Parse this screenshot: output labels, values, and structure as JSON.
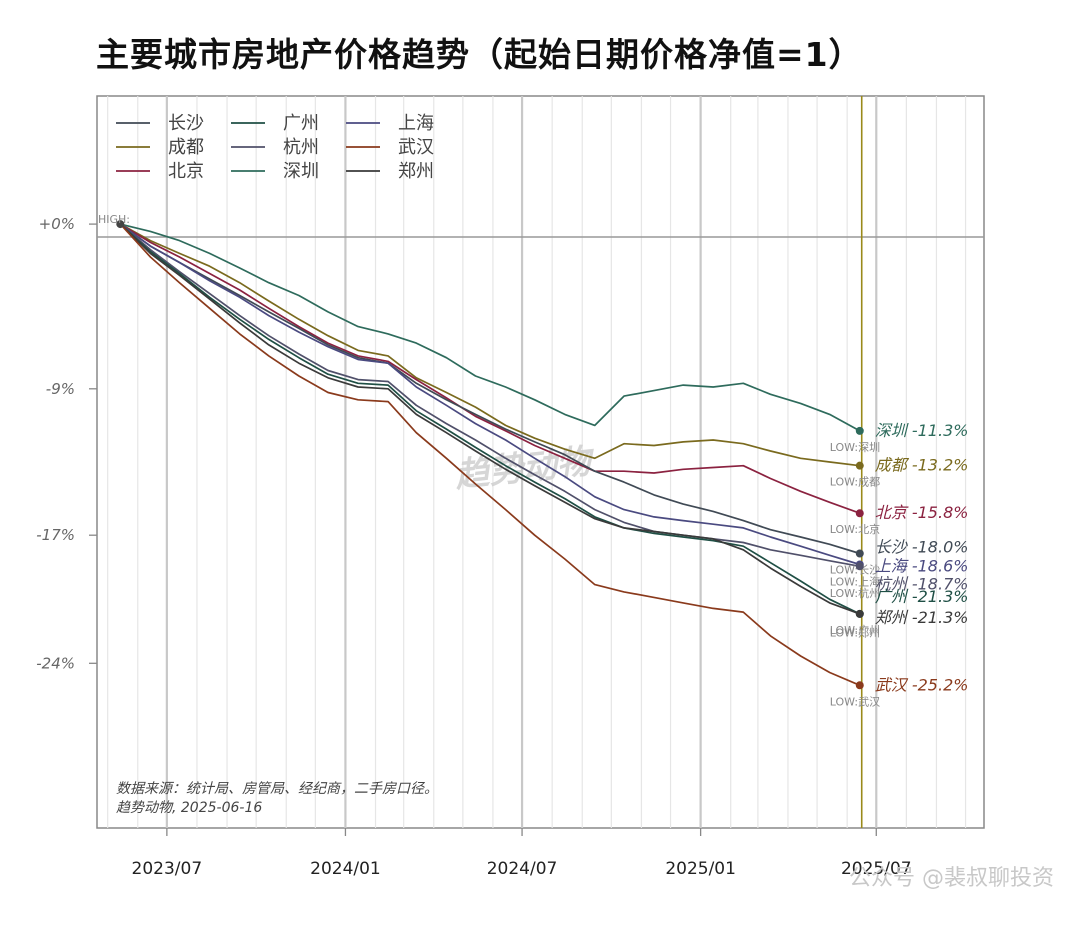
{
  "title": "主要城市房地产价格趋势（起始日期价格净值=1）",
  "high_label": "HIGH:",
  "low_prefix": "LOW:",
  "source_line1": "数据来源：统计局、房管局、经纪商，二手房口径。",
  "source_line2": "趋势动物, 2025-06-16",
  "watermark": "趋势动物",
  "footer_watermark": "公众号 @裴叔聊投资",
  "chart_data": {
    "type": "line",
    "title": "主要城市房地产价格趋势（起始日期价格净值=1）",
    "xlabel": "",
    "ylabel": "",
    "x_ticks": [
      "2023/07",
      "2024/01",
      "2024/07",
      "2025/01",
      "2025/07"
    ],
    "x_range": [
      "2023-04",
      "2025-10"
    ],
    "y_ticks": [
      "+0%",
      "-9%",
      "-17%",
      "-24%"
    ],
    "y_tick_values": [
      0,
      -9,
      -17,
      -24
    ],
    "ylim": [
      -33,
      7
    ],
    "grid": true,
    "legend_position": "top-left",
    "legend_order": [
      "长沙",
      "广州",
      "上海",
      "成都",
      "杭州",
      "武汉",
      "北京",
      "深圳",
      "郑州"
    ],
    "vline_date": "2025-06-16",
    "x": [
      "2023-05",
      "2023-06",
      "2023-07",
      "2023-08",
      "2023-09",
      "2023-10",
      "2023-11",
      "2023-12",
      "2024-01",
      "2024-02",
      "2024-03",
      "2024-04",
      "2024-05",
      "2024-06",
      "2024-07",
      "2024-08",
      "2024-09",
      "2024-10",
      "2024-11",
      "2024-12",
      "2025-01",
      "2025-02",
      "2025-03",
      "2025-04",
      "2025-05",
      "2025-06"
    ],
    "series": [
      {
        "name": "深圳",
        "color": "#2e6b5c",
        "end_label": "深圳 -11.3%",
        "values": [
          0,
          -0.4,
          -0.9,
          -1.6,
          -2.4,
          -3.2,
          -3.9,
          -4.8,
          -5.6,
          -6.0,
          -6.5,
          -7.3,
          -8.3,
          -8.9,
          -9.6,
          -10.4,
          -11.0,
          -9.4,
          -9.1,
          -8.8,
          -8.9,
          -8.7,
          -9.3,
          -9.8,
          -10.4,
          -11.3
        ]
      },
      {
        "name": "成都",
        "color": "#7a6a1e",
        "end_label": "成都 -13.2%",
        "values": [
          0,
          -0.9,
          -1.6,
          -2.3,
          -3.2,
          -4.2,
          -5.2,
          -6.1,
          -6.9,
          -7.2,
          -8.4,
          -9.2,
          -10.0,
          -11.0,
          -11.7,
          -12.3,
          -12.8,
          -12.0,
          -12.1,
          -11.9,
          -11.8,
          -12.0,
          -12.4,
          -12.8,
          -13.0,
          -13.2
        ]
      },
      {
        "name": "北京",
        "color": "#8b2240",
        "end_label": "北京 -15.8%",
        "values": [
          0,
          -1.0,
          -1.8,
          -2.7,
          -3.6,
          -4.6,
          -5.6,
          -6.5,
          -7.2,
          -7.5,
          -8.5,
          -9.5,
          -10.5,
          -11.3,
          -12.1,
          -12.8,
          -13.5,
          -13.5,
          -13.6,
          -13.4,
          -13.3,
          -13.2,
          -13.9,
          -14.6,
          -15.2,
          -15.8
        ]
      },
      {
        "name": "长沙",
        "color": "#404a55",
        "end_label": "长沙 -18.0%",
        "values": [
          0,
          -1.2,
          -2.1,
          -3.0,
          -3.9,
          -4.8,
          -5.7,
          -6.6,
          -7.3,
          -7.6,
          -8.7,
          -9.6,
          -10.4,
          -11.2,
          -11.9,
          -12.6,
          -13.5,
          -14.1,
          -14.8,
          -15.3,
          -15.7,
          -16.2,
          -16.7,
          -17.1,
          -17.5,
          -18.0
        ]
      },
      {
        "name": "上海",
        "color": "#4a4a80",
        "end_label": "上海 -18.6%",
        "values": [
          0,
          -1.2,
          -2.1,
          -3.1,
          -4.0,
          -5.0,
          -5.9,
          -6.7,
          -7.4,
          -7.6,
          -8.9,
          -9.9,
          -10.9,
          -11.8,
          -12.8,
          -13.8,
          -14.9,
          -15.6,
          -16.0,
          -16.2,
          -16.4,
          -16.6,
          -17.1,
          -17.6,
          -18.1,
          -18.6
        ]
      },
      {
        "name": "杭州",
        "color": "#50506a",
        "end_label": "杭州 -18.7%",
        "values": [
          0,
          -1.4,
          -2.6,
          -3.8,
          -5.0,
          -6.1,
          -7.1,
          -8.0,
          -8.5,
          -8.6,
          -9.9,
          -10.9,
          -11.8,
          -12.8,
          -13.7,
          -14.6,
          -15.6,
          -16.3,
          -16.8,
          -17.0,
          -17.2,
          -17.4,
          -17.8,
          -18.1,
          -18.4,
          -18.7
        ]
      },
      {
        "name": "广州",
        "color": "#1f4f45",
        "end_label": "广州 -21.3%",
        "values": [
          0,
          -1.5,
          -2.7,
          -4.0,
          -5.2,
          -6.3,
          -7.3,
          -8.2,
          -8.7,
          -8.8,
          -10.2,
          -11.2,
          -12.2,
          -13.2,
          -14.1,
          -15.0,
          -16.0,
          -16.6,
          -16.9,
          -17.1,
          -17.3,
          -17.6,
          -18.5,
          -19.5,
          -20.5,
          -21.3
        ]
      },
      {
        "name": "郑州",
        "color": "#3a3a3a",
        "end_label": "郑州 -21.3%",
        "values": [
          0,
          -1.6,
          -2.8,
          -4.1,
          -5.4,
          -6.6,
          -7.6,
          -8.4,
          -8.9,
          -9.0,
          -10.4,
          -11.4,
          -12.4,
          -13.4,
          -14.3,
          -15.2,
          -16.1,
          -16.6,
          -16.8,
          -17.0,
          -17.2,
          -17.8,
          -18.8,
          -19.8,
          -20.7,
          -21.3
        ]
      },
      {
        "name": "武汉",
        "color": "#8a3a1c",
        "end_label": "武汉 -25.2%",
        "values": [
          0,
          -1.8,
          -3.2,
          -4.6,
          -6.0,
          -7.2,
          -8.3,
          -9.2,
          -9.6,
          -9.7,
          -11.4,
          -12.8,
          -14.2,
          -15.6,
          -17.0,
          -18.3,
          -19.7,
          -20.1,
          -20.4,
          -20.7,
          -21.0,
          -21.2,
          -22.5,
          -23.6,
          -24.5,
          -25.2
        ]
      }
    ]
  }
}
